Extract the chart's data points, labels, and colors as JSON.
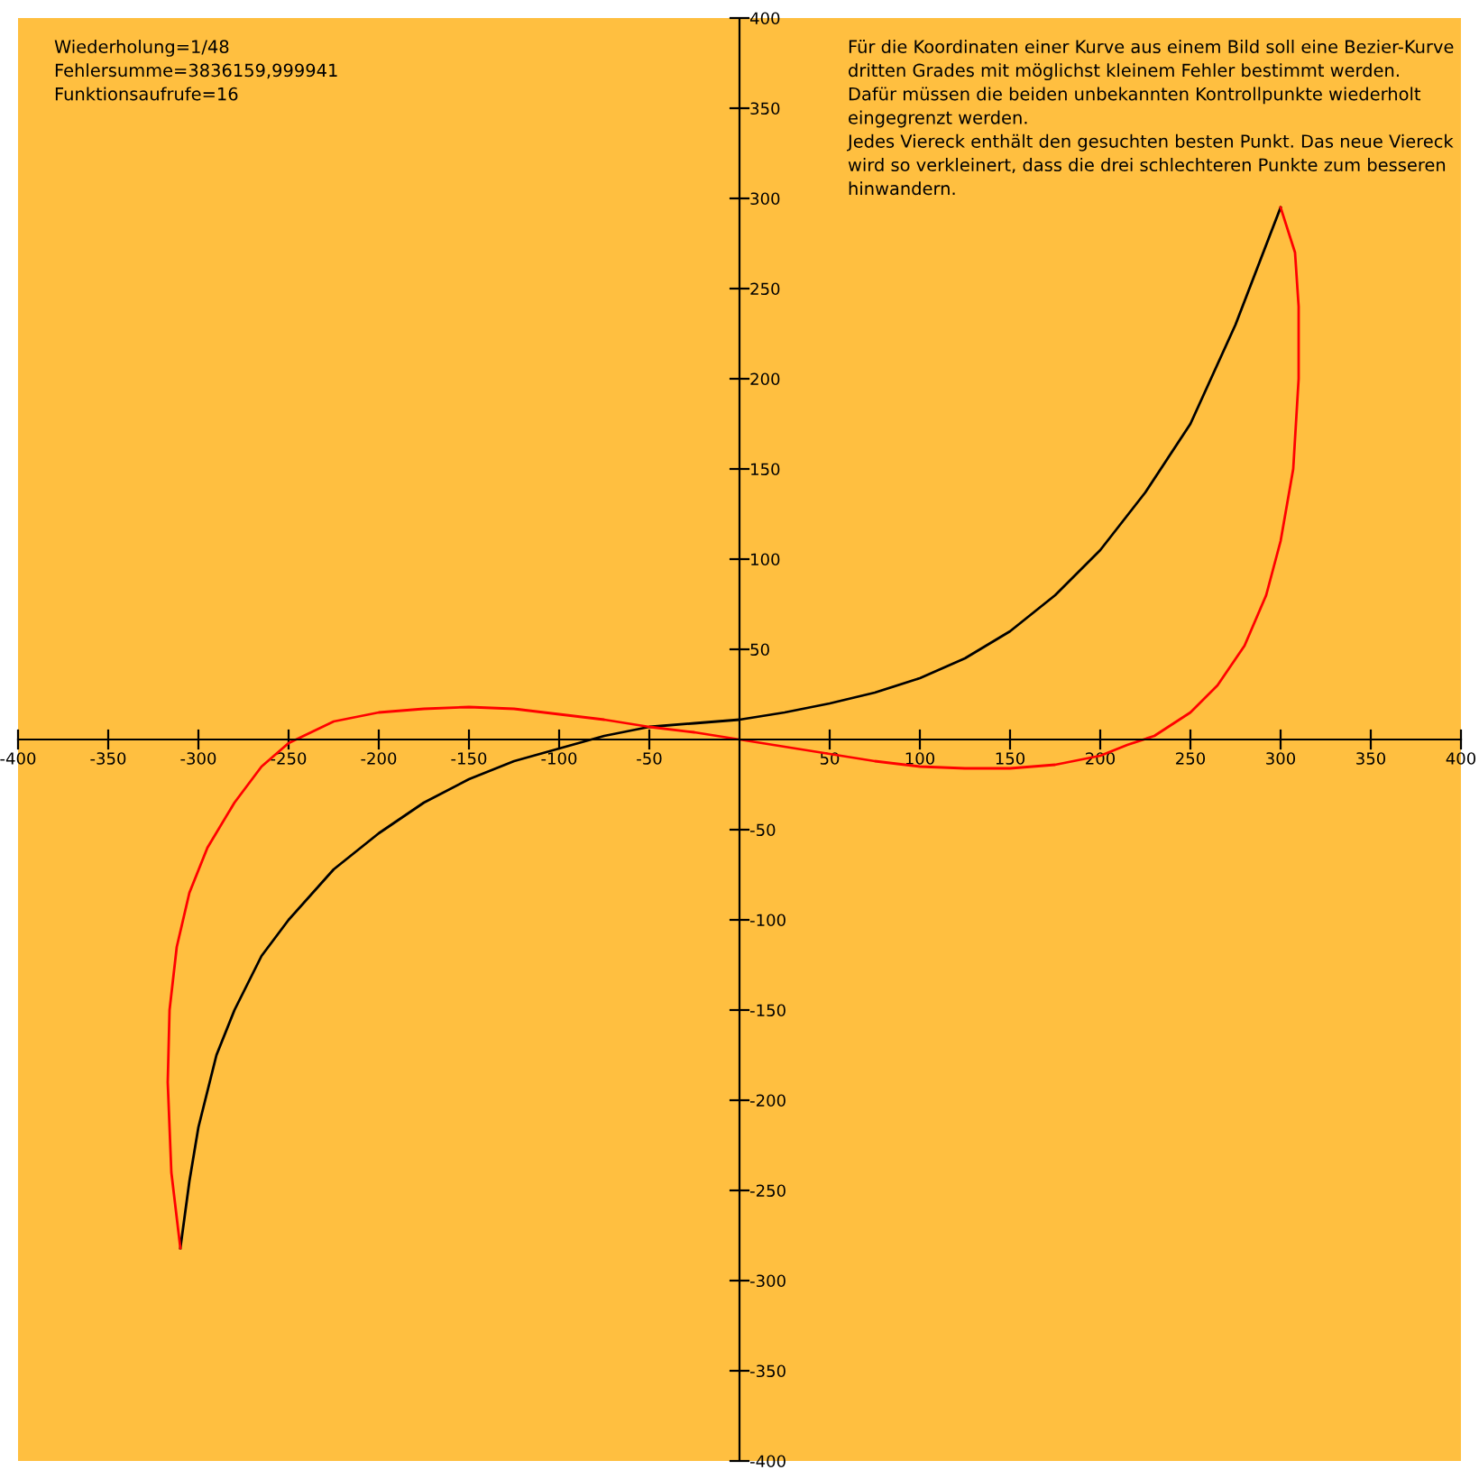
{
  "chart_data": {
    "type": "line",
    "series": [
      {
        "color": "#000000",
        "x": [
          -310,
          -305,
          -300,
          -290,
          -280,
          -265,
          -250,
          -225,
          -200,
          -175,
          -150,
          -125,
          -100,
          -75,
          -50,
          -25,
          0,
          25,
          50,
          75,
          100,
          125,
          150,
          175,
          200,
          225,
          250,
          275,
          300
        ],
        "values": [
          -282,
          -245,
          -215,
          -175,
          -150,
          -120,
          -100,
          -72,
          -52,
          -35,
          -22,
          -12,
          -5,
          2,
          7,
          9,
          11,
          15,
          20,
          26,
          34,
          45,
          60,
          80,
          105,
          137,
          175,
          230,
          295
        ]
      },
      {
        "color": "#ff0000",
        "x": [
          -310,
          -315,
          -317,
          -316,
          -312,
          -305,
          -295,
          -280,
          -265,
          -250,
          -225,
          -200,
          -175,
          -150,
          -125,
          -100,
          -75,
          -50,
          -25,
          0,
          25,
          50,
          75,
          100,
          125,
          150,
          175,
          200,
          215,
          230,
          250,
          265,
          280,
          292,
          300,
          307,
          310,
          310,
          308,
          300
        ],
        "values": [
          -282,
          -240,
          -190,
          -150,
          -115,
          -85,
          -60,
          -35,
          -15,
          -2,
          10,
          15,
          17,
          18,
          17,
          14,
          11,
          7,
          4,
          0,
          -4,
          -8,
          -12,
          -15,
          -16,
          -16,
          -14,
          -9,
          -3,
          2,
          15,
          30,
          52,
          80,
          110,
          150,
          200,
          240,
          270,
          295
        ]
      }
    ],
    "xlim": [
      -400,
      400
    ],
    "ylim": [
      -400,
      400
    ],
    "xticks": [
      -400,
      -350,
      -300,
      -250,
      -200,
      -150,
      -100,
      -50,
      50,
      100,
      150,
      200,
      250,
      300,
      350,
      400
    ],
    "yticks": [
      -400,
      -350,
      -300,
      -250,
      -200,
      -150,
      -100,
      -50,
      50,
      100,
      150,
      200,
      250,
      300,
      350,
      400
    ],
    "grid": false,
    "legend": false,
    "annotations": [
      "Wiederholung=1/48\nFehlersumme=3836159,999941\nFunktionsaufrufe=16",
      "Für die Koordinaten einer Kurve aus einem Bild soll eine Bezier-Kurve\ndritten Grades mit möglichst kleinem Fehler bestimmt werden.\nDafür müssen die beiden unbekannten Kontrollpunkte wiederholt\neingegrenzt werden.\nJedes Viereck enthält den gesuchten besten Punkt. Das neue Viereck\nwird so verkleinert, dass die drei schlechteren Punkte zum besseren\nhinwandern."
    ]
  }
}
